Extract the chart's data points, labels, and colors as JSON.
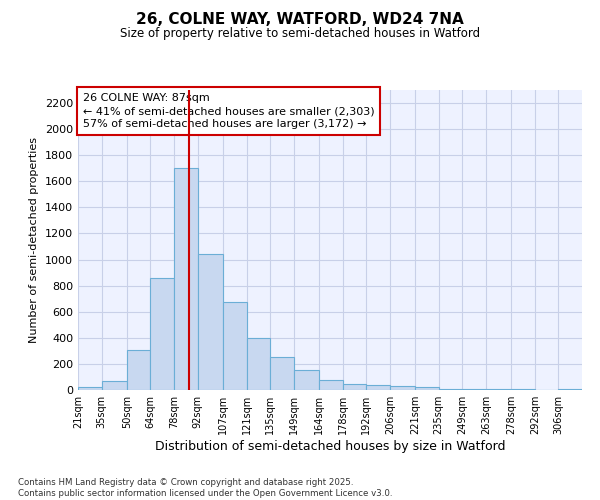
{
  "title": "26, COLNE WAY, WATFORD, WD24 7NA",
  "subtitle": "Size of property relative to semi-detached houses in Watford",
  "xlabel": "Distribution of semi-detached houses by size in Watford",
  "ylabel": "Number of semi-detached properties",
  "bar_color": "#c8d8f0",
  "bar_edge_color": "#6baed6",
  "vline_value": 87,
  "vline_color": "#cc0000",
  "annotation_title": "26 COLNE WAY: 87sqm",
  "annotation_line1": "← 41% of semi-detached houses are smaller (2,303)",
  "annotation_line2": "57% of semi-detached houses are larger (3,172) →",
  "annotation_box_color": "#ffffff",
  "annotation_box_edge": "#cc0000",
  "footer_line1": "Contains HM Land Registry data © Crown copyright and database right 2025.",
  "footer_line2": "Contains public sector information licensed under the Open Government Licence v3.0.",
  "background_color": "#ffffff",
  "plot_bg_color": "#eef2ff",
  "grid_color": "#c8d0e8",
  "bin_labels": [
    "21sqm",
    "35sqm",
    "50sqm",
    "64sqm",
    "78sqm",
    "92sqm",
    "107sqm",
    "121sqm",
    "135sqm",
    "149sqm",
    "164sqm",
    "178sqm",
    "192sqm",
    "206sqm",
    "221sqm",
    "235sqm",
    "249sqm",
    "263sqm",
    "278sqm",
    "292sqm",
    "306sqm"
  ],
  "bin_edges": [
    21,
    35,
    50,
    64,
    78,
    92,
    107,
    121,
    135,
    149,
    164,
    178,
    192,
    206,
    221,
    235,
    249,
    263,
    278,
    292,
    306,
    320
  ],
  "bar_heights": [
    20,
    70,
    310,
    860,
    1700,
    1040,
    675,
    395,
    250,
    150,
    80,
    45,
    35,
    30,
    20,
    5,
    5,
    5,
    5,
    0,
    10
  ],
  "ylim": [
    0,
    2300
  ],
  "yticks": [
    0,
    200,
    400,
    600,
    800,
    1000,
    1200,
    1400,
    1600,
    1800,
    2000,
    2200
  ]
}
